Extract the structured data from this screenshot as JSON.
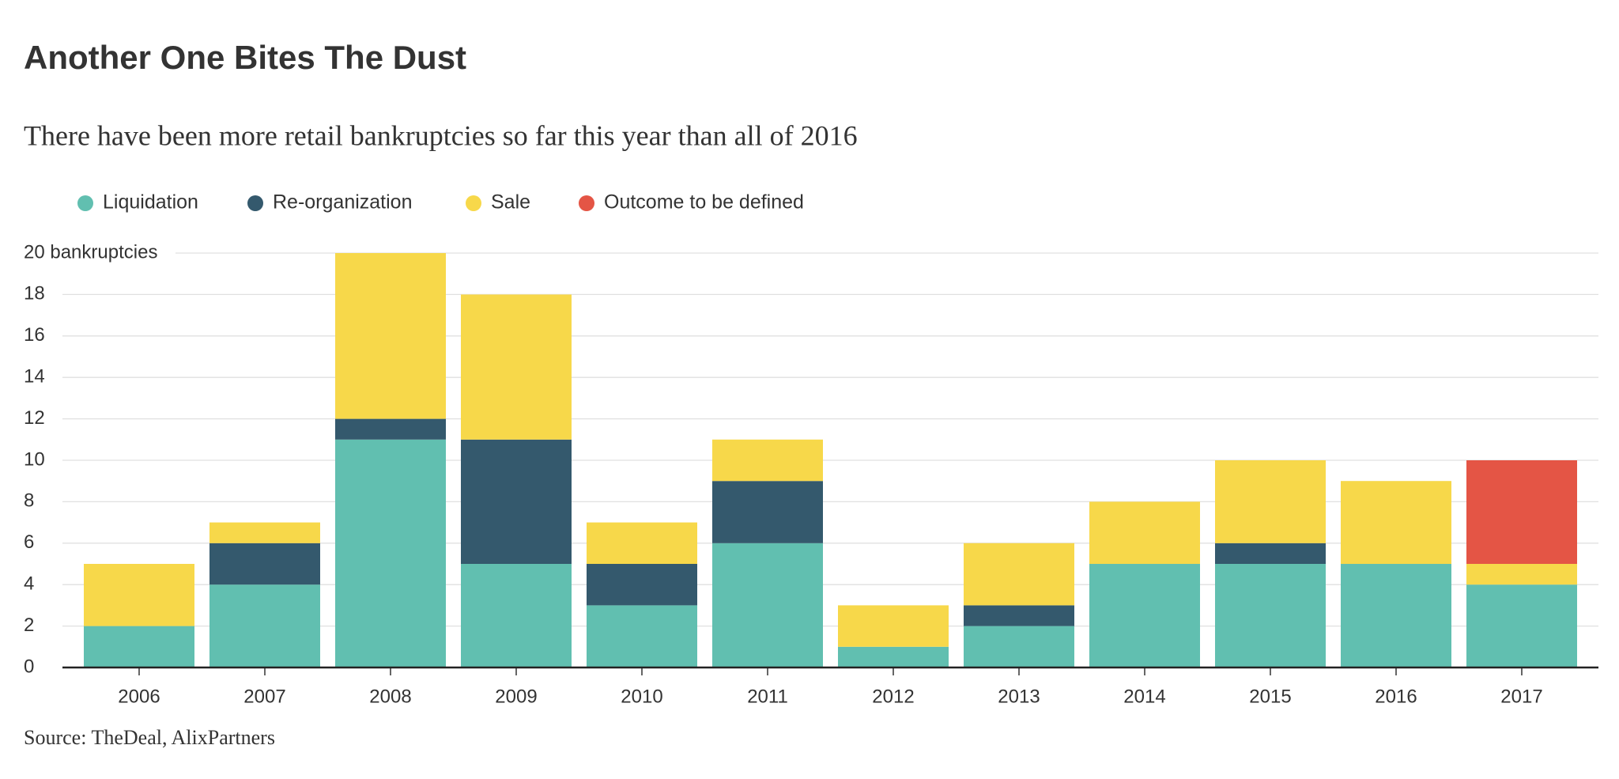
{
  "chart_data": {
    "type": "stacked_bar",
    "title": "Another One Bites The Dust",
    "subtitle": "There have been more retail bankruptcies so far this year than all of 2016",
    "source": "Source: TheDeal, AlixPartners",
    "categories": [
      "2006",
      "2007",
      "2008",
      "2009",
      "2010",
      "2011",
      "2012",
      "2013",
      "2014",
      "2015",
      "2016",
      "2017"
    ],
    "series": [
      {
        "name": "Liquidation",
        "color": "#61bfb0",
        "values": [
          2,
          4,
          11,
          5,
          3,
          6,
          1,
          2,
          5,
          5,
          5,
          4
        ]
      },
      {
        "name": "Re-organization",
        "color": "#34596d",
        "values": [
          0,
          2,
          1,
          6,
          2,
          3,
          0,
          1,
          0,
          1,
          0,
          0
        ]
      },
      {
        "name": "Sale",
        "color": "#f7d84a",
        "values": [
          3,
          1,
          8,
          7,
          2,
          2,
          2,
          3,
          3,
          4,
          4,
          1
        ]
      },
      {
        "name": "Outcome to be defined",
        "color": "#e45545",
        "values": [
          0,
          0,
          0,
          0,
          0,
          0,
          0,
          0,
          0,
          0,
          0,
          5
        ]
      }
    ],
    "ylim": [
      0,
      20
    ],
    "yticks": [
      0,
      2,
      4,
      6,
      8,
      10,
      12,
      14,
      16,
      18,
      {
        "value": 20,
        "label": "20 bankruptcies"
      }
    ],
    "grid": true
  }
}
